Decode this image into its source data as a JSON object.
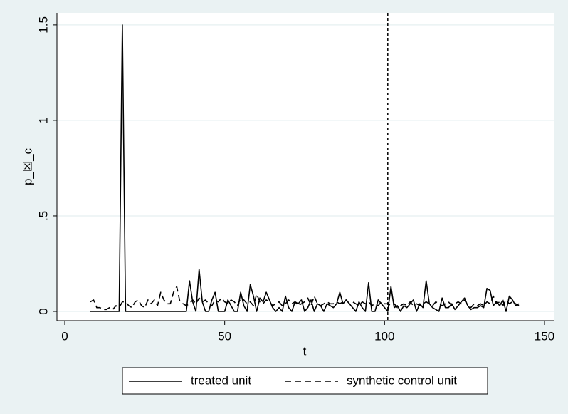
{
  "chart_data": {
    "type": "line",
    "x_label": "t",
    "y_label": "p_☒_c",
    "x": [
      8,
      9,
      10,
      11,
      12,
      13,
      14,
      15,
      16,
      17,
      18,
      19,
      20,
      21,
      22,
      23,
      24,
      25,
      26,
      27,
      28,
      29,
      30,
      31,
      32,
      33,
      34,
      35,
      36,
      37,
      38,
      39,
      40,
      41,
      42,
      43,
      44,
      45,
      46,
      47,
      48,
      49,
      50,
      51,
      52,
      53,
      54,
      55,
      56,
      57,
      58,
      59,
      60,
      61,
      62,
      63,
      64,
      65,
      66,
      67,
      68,
      69,
      70,
      71,
      72,
      73,
      74,
      75,
      76,
      77,
      78,
      79,
      80,
      81,
      82,
      83,
      84,
      85,
      86,
      87,
      88,
      89,
      90,
      91,
      92,
      93,
      94,
      95,
      96,
      97,
      98,
      99,
      100,
      101,
      102,
      103,
      104,
      105,
      106,
      107,
      108,
      109,
      110,
      111,
      112,
      113,
      114,
      115,
      116,
      117,
      118,
      119,
      120,
      121,
      122,
      123,
      124,
      125,
      126,
      127,
      128,
      129,
      130,
      131,
      132,
      133,
      134,
      135,
      136,
      137,
      138,
      139,
      140,
      141,
      142
    ],
    "series": [
      {
        "name": "treated unit",
        "color": "#000000",
        "dash": "solid",
        "values": [
          0,
          0,
          0,
          0,
          0,
          0,
          0,
          0,
          0,
          0,
          1.5,
          0,
          0,
          0,
          0,
          0,
          0,
          0,
          0,
          0,
          0,
          0,
          0,
          0,
          0,
          0,
          0,
          0,
          0,
          0,
          0,
          0.16,
          0.05,
          0,
          0.22,
          0.05,
          0,
          0,
          0.06,
          0.1,
          0,
          0,
          0,
          0.06,
          0.03,
          0,
          0,
          0.1,
          0.03,
          0,
          0.14,
          0.08,
          0,
          0.07,
          0.05,
          0.1,
          0.06,
          0.02,
          0,
          0.02,
          0,
          0.08,
          0.02,
          0,
          0.05,
          0.04,
          0.06,
          0,
          0.02,
          0.06,
          0,
          0.04,
          0.03,
          0,
          0.04,
          0.03,
          0.02,
          0.04,
          0.1,
          0.04,
          0.06,
          0.04,
          0.02,
          0,
          0.05,
          0.02,
          0,
          0.15,
          0,
          0,
          0.06,
          0.04,
          0.02,
          0,
          0.13,
          0.02,
          0.03,
          0,
          0.03,
          0.02,
          0.04,
          0.06,
          0,
          0.04,
          0.02,
          0.16,
          0.04,
          0.02,
          0.01,
          0,
          0.07,
          0.02,
          0.02,
          0.04,
          0.01,
          0.03,
          0.05,
          0.07,
          0.03,
          0.01,
          0.02,
          0.02,
          0.03,
          0.02,
          0.12,
          0.11,
          0.03,
          0.05,
          0.03,
          0.06,
          0,
          0.08,
          0.06,
          0.03,
          0.04
        ]
      },
      {
        "name": "synthetic control unit",
        "color": "#000000",
        "dash": "dashed",
        "values": [
          0.05,
          0.06,
          0.02,
          0.02,
          0.01,
          0.01,
          0.02,
          0.01,
          0.03,
          0.02,
          0.05,
          0.05,
          0.03,
          0.02,
          0.05,
          0.06,
          0.03,
          0.02,
          0.06,
          0.04,
          0.06,
          0.03,
          0.1,
          0.06,
          0.04,
          0.04,
          0.1,
          0.13,
          0.05,
          0.04,
          0.03,
          0.04,
          0.06,
          0.04,
          0.07,
          0.05,
          0.06,
          0.04,
          0.03,
          0.06,
          0.05,
          0.07,
          0.05,
          0.04,
          0.06,
          0.05,
          0.03,
          0.07,
          0.06,
          0.04,
          0.05,
          0.03,
          0.09,
          0.05,
          0.04,
          0.06,
          0.05,
          0.03,
          0.04,
          0.05,
          0.03,
          0.04,
          0.06,
          0.04,
          0.05,
          0.03,
          0.04,
          0.05,
          0.07,
          0.03,
          0.08,
          0.04,
          0.03,
          0.04,
          0.05,
          0.04,
          0.04,
          0.05,
          0.04,
          0.05,
          0.06,
          0.04,
          0.05,
          0.04,
          0.03,
          0.05,
          0.04,
          0.05,
          0.03,
          0.04,
          0.03,
          0.05,
          0.04,
          0.04,
          0.03,
          0.04,
          0.02,
          0.03,
          0.04,
          0.03,
          0.05,
          0.03,
          0.04,
          0.03,
          0.04,
          0.05,
          0.04,
          0.03,
          0.05,
          0.04,
          0.03,
          0.04,
          0.05,
          0.03,
          0.04,
          0.05,
          0.04,
          0.06,
          0.03,
          0.02,
          0.04,
          0.03,
          0.04,
          0.03,
          0.05,
          0.04,
          0.08,
          0.04,
          0.05,
          0.03,
          0.06,
          0.04,
          0.05,
          0.04,
          0.03
        ]
      }
    ],
    "xline": 101,
    "xlim": [
      -2.45,
      152.9
    ],
    "ylim": [
      -0.0485,
      1.563
    ],
    "xticks": [
      0,
      50,
      100,
      150
    ],
    "yticks": [
      0,
      {
        "value": 0.5,
        "label": ".5"
      },
      1,
      1.5
    ],
    "grid": true,
    "legend": "bottom"
  }
}
